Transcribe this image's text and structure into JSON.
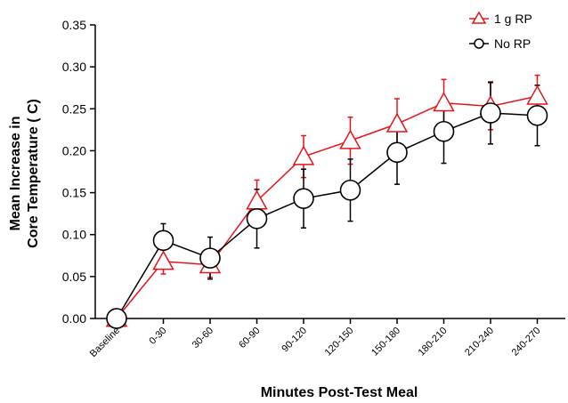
{
  "chart_data": {
    "type": "line",
    "xlabel": "Minutes Post-Test Meal",
    "ylabel_lines": [
      "Mean Increase in",
      "Core Temperature ( C)"
    ],
    "categories": [
      "Baseline",
      "0-30",
      "30-60",
      "60-90",
      "90-120",
      "120-150",
      "150-180",
      "180-210",
      "210-240",
      "240-270"
    ],
    "ylim": [
      0,
      0.35
    ],
    "yticks": [
      "0.00",
      "0.05",
      "0.10",
      "0.15",
      "0.20",
      "0.25",
      "0.30",
      "0.35"
    ],
    "legend_position": "top-right",
    "series": [
      {
        "name": "1 g RP",
        "color": "#e8141b",
        "marker": "triangle",
        "values": [
          0.0,
          0.068,
          0.064,
          0.14,
          0.193,
          0.212,
          0.232,
          0.257,
          0.253,
          0.265
        ],
        "error": [
          0.0,
          0.015,
          0.015,
          0.025,
          0.025,
          0.028,
          0.03,
          0.028,
          0.028,
          0.025
        ]
      },
      {
        "name": "No RP",
        "color": "#000000",
        "marker": "circle",
        "values": [
          0.0,
          0.093,
          0.072,
          0.119,
          0.143,
          0.153,
          0.198,
          0.223,
          0.245,
          0.242
        ],
        "error": [
          0.0,
          0.02,
          0.025,
          0.035,
          0.035,
          0.037,
          0.038,
          0.038,
          0.037,
          0.036
        ]
      }
    ]
  }
}
